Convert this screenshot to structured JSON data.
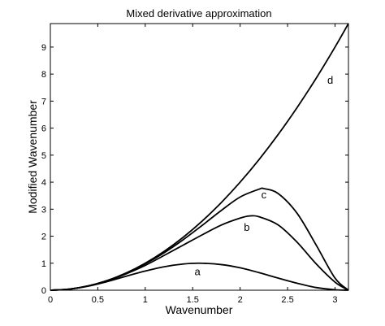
{
  "chart_data": {
    "type": "line",
    "title": "Mixed derivative approximation",
    "xlabel": "Wavenumber",
    "ylabel": "Modified Wavenumber",
    "xlim": [
      0,
      3.14159
    ],
    "ylim": [
      0,
      9.87
    ],
    "grid": false,
    "legend": "none",
    "xticks": [
      0,
      0.5,
      1,
      1.5,
      2,
      2.5,
      3
    ],
    "xtick_labels": [
      "0",
      "0.5",
      "1",
      "1.5",
      "2",
      "2.5",
      "3"
    ],
    "yticks": [
      0,
      1,
      2,
      3,
      4,
      5,
      6,
      7,
      8,
      9
    ],
    "ytick_labels": [
      "0",
      "1",
      "2",
      "3",
      "4",
      "5",
      "6",
      "7",
      "8",
      "9"
    ],
    "series": [
      {
        "name": "a",
        "label_at": [
          1.55,
          0.55
        ],
        "x": [
          0,
          0.2,
          0.4,
          0.6,
          0.8,
          1.0,
          1.2,
          1.4,
          1.5708,
          1.8,
          2.0,
          2.2,
          2.4,
          2.6,
          2.8,
          3.0,
          3.1416
        ],
        "y": [
          0,
          0.04,
          0.15,
          0.32,
          0.52,
          0.71,
          0.87,
          0.97,
          1.0,
          0.95,
          0.83,
          0.65,
          0.45,
          0.26,
          0.1,
          0.02,
          0
        ]
      },
      {
        "name": "b",
        "label_at": [
          2.07,
          2.2
        ],
        "x": [
          0,
          0.2,
          0.4,
          0.6,
          0.8,
          1.0,
          1.2,
          1.4,
          1.6,
          1.8,
          2.0,
          2.1,
          2.2,
          2.4,
          2.6,
          2.8,
          3.0,
          3.1416
        ],
        "y": [
          0,
          0.04,
          0.16,
          0.35,
          0.61,
          0.92,
          1.29,
          1.67,
          2.05,
          2.41,
          2.67,
          2.75,
          2.72,
          2.42,
          1.78,
          0.98,
          0.3,
          0
        ]
      },
      {
        "name": "c",
        "label_at": [
          2.25,
          3.4
        ],
        "x": [
          0,
          0.2,
          0.4,
          0.6,
          0.8,
          1.0,
          1.2,
          1.4,
          1.6,
          1.8,
          2.0,
          2.2,
          2.25,
          2.4,
          2.6,
          2.8,
          3.0,
          3.1416
        ],
        "y": [
          0,
          0.04,
          0.16,
          0.36,
          0.63,
          0.98,
          1.39,
          1.87,
          2.4,
          2.95,
          3.45,
          3.74,
          3.76,
          3.58,
          2.85,
          1.68,
          0.45,
          0
        ]
      },
      {
        "name": "d",
        "label_at": [
          2.95,
          7.65
        ],
        "x": [
          0,
          0.2,
          0.4,
          0.6,
          0.8,
          1.0,
          1.2,
          1.4,
          1.6,
          1.8,
          2.0,
          2.2,
          2.4,
          2.6,
          2.8,
          3.0,
          3.1416
        ],
        "y": [
          0,
          0.04,
          0.16,
          0.36,
          0.64,
          1.0,
          1.44,
          1.96,
          2.56,
          3.24,
          4.0,
          4.84,
          5.76,
          6.76,
          7.84,
          9.0,
          9.87
        ]
      }
    ]
  }
}
